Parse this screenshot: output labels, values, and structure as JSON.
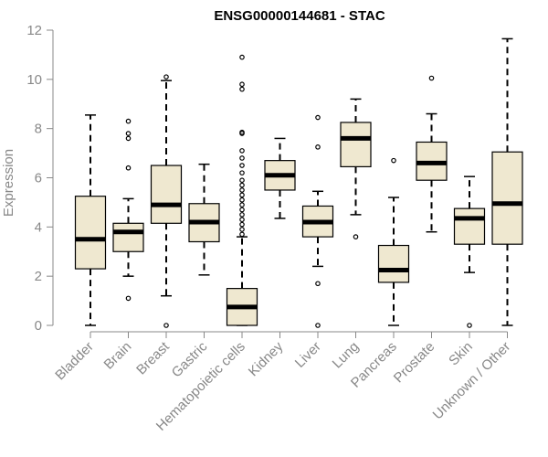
{
  "chart_data": {
    "type": "box",
    "title": "ENSG00000144681 - STAC",
    "xlabel": "",
    "ylabel": "Expression",
    "ylim": [
      0,
      12
    ],
    "yticks": [
      0,
      2,
      4,
      6,
      8,
      10,
      12
    ],
    "grid": false,
    "colors": {
      "box_fill": "#efe8d0",
      "stroke": "#000000",
      "axis": "#888888"
    },
    "categories": [
      "Bladder",
      "Brain",
      "Breast",
      "Gastric",
      "Hematopoietic cells",
      "Kidney",
      "Liver",
      "Lung",
      "Pancreas",
      "Prostate",
      "Skin",
      "Unknown / Other"
    ],
    "boxes": [
      {
        "min": 0.0,
        "q1": 2.3,
        "median": 3.5,
        "q3": 5.25,
        "max": 8.55,
        "outliers": []
      },
      {
        "min": 2.0,
        "q1": 3.0,
        "median": 3.8,
        "q3": 4.15,
        "max": 5.15,
        "outliers": [
          1.1,
          6.4,
          7.6,
          7.8,
          8.3
        ]
      },
      {
        "min": 1.2,
        "q1": 4.15,
        "median": 4.9,
        "q3": 6.5,
        "max": 9.95,
        "outliers": [
          0.0,
          10.1
        ]
      },
      {
        "min": 2.05,
        "q1": 3.4,
        "median": 4.2,
        "q3": 4.95,
        "max": 6.55,
        "outliers": []
      },
      {
        "min": 0.0,
        "q1": 0.0,
        "median": 0.75,
        "q3": 1.5,
        "max": 3.6,
        "outliers": [
          3.7,
          3.9,
          4.1,
          4.3,
          4.5,
          4.7,
          4.9,
          5.1,
          5.3,
          5.5,
          5.7,
          5.9,
          6.2,
          6.5,
          6.8,
          7.1,
          7.8,
          7.85,
          9.6,
          9.8,
          10.9
        ]
      },
      {
        "min": 4.35,
        "q1": 5.5,
        "median": 6.1,
        "q3": 6.7,
        "max": 7.6,
        "outliers": []
      },
      {
        "min": 2.4,
        "q1": 3.6,
        "median": 4.2,
        "q3": 4.85,
        "max": 5.45,
        "outliers": [
          0.0,
          1.7,
          7.25,
          8.45
        ]
      },
      {
        "min": 4.5,
        "q1": 6.45,
        "median": 7.6,
        "q3": 8.25,
        "max": 9.2,
        "outliers": [
          3.6
        ]
      },
      {
        "min": 0.0,
        "q1": 1.75,
        "median": 2.25,
        "q3": 3.25,
        "max": 5.2,
        "outliers": [
          6.7
        ]
      },
      {
        "min": 3.8,
        "q1": 5.9,
        "median": 6.6,
        "q3": 7.45,
        "max": 8.6,
        "outliers": [
          10.05
        ]
      },
      {
        "min": 2.15,
        "q1": 3.3,
        "median": 4.35,
        "q3": 4.75,
        "max": 6.05,
        "outliers": [
          0.0
        ]
      },
      {
        "min": 0.0,
        "q1": 3.3,
        "median": 4.95,
        "q3": 7.05,
        "max": 11.65,
        "outliers": []
      }
    ]
  }
}
